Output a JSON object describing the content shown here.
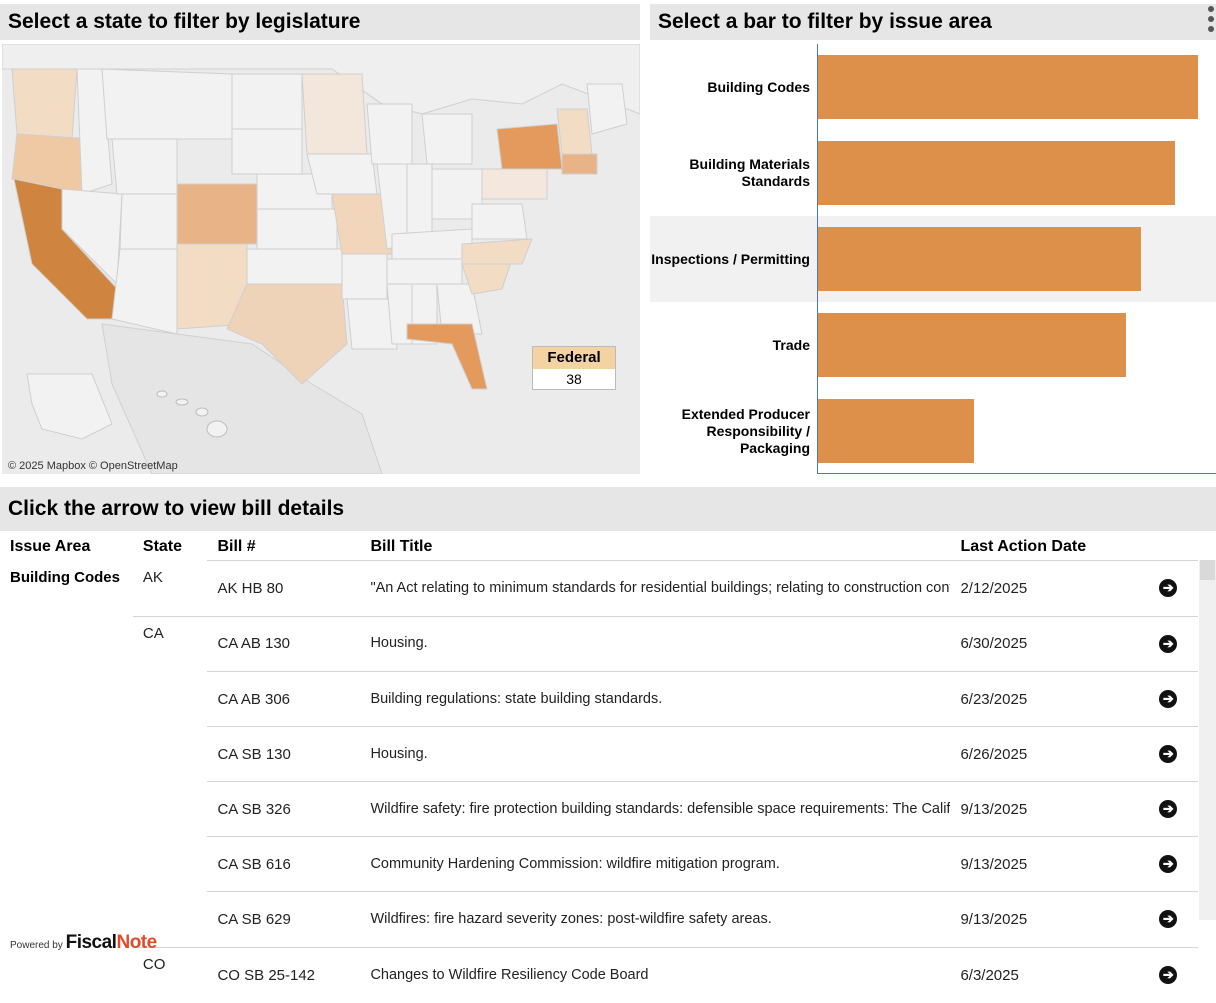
{
  "map_panel": {
    "title": "Select a state to filter by legislature",
    "credit": "© 2025 Mapbox © OpenStreetMap",
    "federal_label": "Federal",
    "federal_value": "38",
    "colors": {
      "ocean": "#e9e9e9",
      "land": "#f2f2f2",
      "light": "#f3dcc4",
      "medium": "#e8b487",
      "dark": "#cf8440"
    }
  },
  "bar_panel": {
    "title": "Select a bar to filter by issue area",
    "bar_color": "#dd904a",
    "chart_data": {
      "type": "bar",
      "orientation": "horizontal",
      "categories": [
        "Building Codes",
        "Building Materials Standards",
        "Inspections / Permitting",
        "Trade",
        "Extended Producer Responsibility / Packaging"
      ],
      "values": [
        100,
        94,
        85,
        81,
        41
      ],
      "value_unit": "relative (unlabeled)"
    }
  },
  "table_panel": {
    "title": "Click the arrow to view bill details",
    "columns": [
      "Issue Area",
      "State",
      "Bill #",
      "Bill Title",
      "Last Action Date"
    ],
    "rows": [
      {
        "issue": "Building Codes",
        "state": "AK",
        "bill": "AK HB 80",
        "title": "\"An Act relating to minimum standards for residential buildings; relating to construction contractors and residential contractor endorsements; establishing the",
        "date": "2/12/2025"
      },
      {
        "issue": "",
        "state": "CA",
        "bill": "CA AB 130",
        "title": "Housing.",
        "date": "6/30/2025"
      },
      {
        "issue": "",
        "state": "",
        "bill": "CA AB 306",
        "title": "Building regulations: state building standards.",
        "date": "6/23/2025"
      },
      {
        "issue": "",
        "state": "",
        "bill": "CA SB 130",
        "title": "Housing.",
        "date": "6/26/2025"
      },
      {
        "issue": "",
        "state": "",
        "bill": "CA SB 326",
        "title": "Wildfire safety: fire protection building standards: defensible space requirements: The California Wildfire Mitigation Strategic Planning Act.",
        "date": "9/13/2025"
      },
      {
        "issue": "",
        "state": "",
        "bill": "CA SB 616",
        "title": "Community Hardening Commission: wildfire mitigation program.",
        "date": "9/13/2025"
      },
      {
        "issue": "",
        "state": "",
        "bill": "CA SB 629",
        "title": "Wildfires: fire hazard severity zones: post-wildfire safety areas.",
        "date": "9/13/2025"
      },
      {
        "issue": "",
        "state": "CO",
        "bill": "CO SB 25-142",
        "title": "Changes to Wildfire Resiliency Code Board",
        "date": "6/3/2025"
      }
    ],
    "arrow_icon": "arrow-right-circle-icon"
  },
  "footer": {
    "powered_by": "Powered by",
    "brand_fiscal": "Fiscal",
    "brand_note": "Note"
  }
}
